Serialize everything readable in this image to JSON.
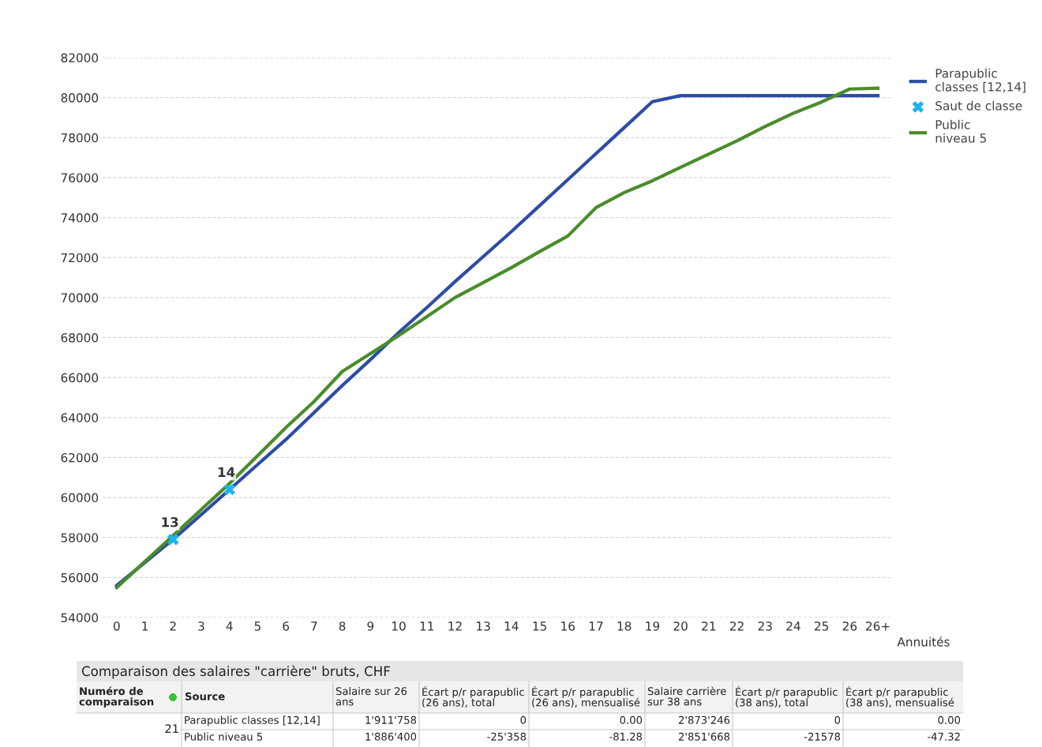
{
  "chart_data": {
    "type": "line",
    "categories": [
      "0",
      "1",
      "2",
      "3",
      "4",
      "5",
      "6",
      "7",
      "8",
      "9",
      "10",
      "11",
      "12",
      "13",
      "14",
      "15",
      "16",
      "17",
      "18",
      "19",
      "20",
      "21",
      "22",
      "23",
      "24",
      "25",
      "26",
      "26+"
    ],
    "xlabel": "Annuités",
    "series": [
      {
        "name": "Parapublic classes [12,14]",
        "color": "#2e4ca6",
        "values": [
          55600,
          56750,
          57900,
          59150,
          60400,
          61650,
          62900,
          64250,
          65600,
          66900,
          68250,
          69500,
          70800,
          72050,
          73300,
          74600,
          75900,
          77200,
          78500,
          79800,
          80100,
          80100,
          80100,
          80100,
          80100,
          80100,
          80100,
          80100
        ]
      },
      {
        "name": "Saut de classe",
        "type": "scatter",
        "marker": "cross",
        "color": "#1db4ee",
        "x": [
          "2",
          "4"
        ],
        "values": [
          57900,
          60400
        ]
      },
      {
        "name": "Public niveau 5",
        "color": "#4a8c2a",
        "values": [
          55500,
          56800,
          58100,
          59400,
          60700,
          62100,
          63500,
          64800,
          66300,
          67200,
          68100,
          69050,
          70000,
          70750,
          71500,
          72300,
          73080,
          74500,
          75250,
          75840,
          76520,
          77180,
          77840,
          78560,
          79220,
          79780,
          80430,
          80470
        ]
      }
    ],
    "ylim": [
      54000,
      82000
    ],
    "yticks": [
      54000,
      56000,
      58000,
      60000,
      62000,
      64000,
      66000,
      68000,
      70000,
      72000,
      74000,
      76000,
      78000,
      80000,
      82000
    ],
    "grid": "y",
    "legend": "top right",
    "line_style": "solid",
    "marker": "none",
    "annotations": [
      {
        "text": "13",
        "x": "2",
        "y": 57900
      },
      {
        "text": "14",
        "x": "4",
        "y": 60400
      },
      "Comparaison des salaires \"carrière\" bruts, CHF",
      "Numéro de comparaison",
      "Source",
      "Salaire sur 26 ans",
      "Écart p/r parapublic (26 ans), total",
      "Écart p/r parapublic (26 ans), mensualisé",
      "Salaire carrière sur 38 ans",
      "Écart p/r parapublic (38 ans), total",
      "Écart p/r parapublic (38 ans), mensualisé",
      "21",
      "Parapublic classes [12,14]",
      "1'911'758",
      "0",
      "0.00",
      "2'873'246",
      "0",
      "0.00",
      "Public niveau 5",
      "1'886'400",
      "-25'358",
      "-81.28",
      "2'851'668",
      "-21578",
      "-47.32"
    ]
  }
}
